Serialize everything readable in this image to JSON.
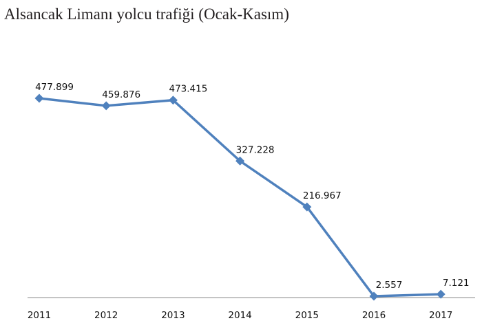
{
  "chart_data": {
    "type": "line",
    "title": "Alsancak Limanı yolcu trafiği (Ocak-Kasım)",
    "categories": [
      "2011",
      "2012",
      "2013",
      "2014",
      "2015",
      "2016",
      "2017"
    ],
    "values": [
      477899,
      459876,
      473415,
      327228,
      216967,
      2557,
      7121
    ],
    "value_labels": [
      "477.899",
      "459.876",
      "473.415",
      "327.228",
      "216.967",
      "2.557",
      "7.121"
    ],
    "color": "#4f81bd"
  }
}
